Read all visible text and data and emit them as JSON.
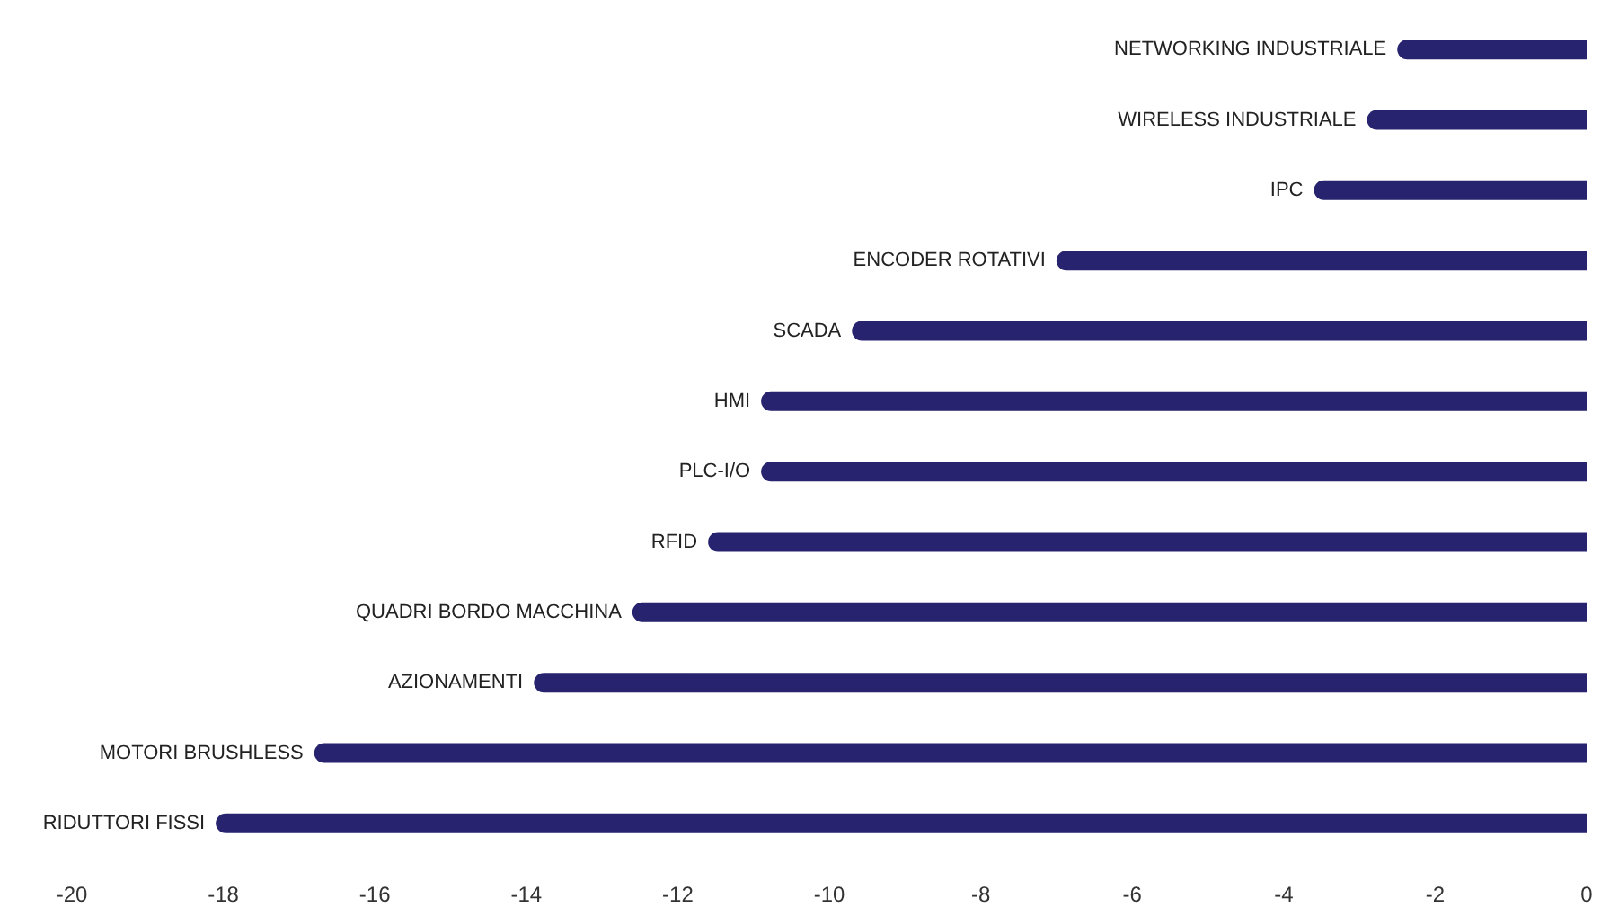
{
  "chart_data": {
    "type": "bar",
    "orientation": "horizontal",
    "categories": [
      "NETWORKING INDUSTRIALE",
      "WIRELESS INDUSTRIALE",
      "IPC",
      "ENCODER ROTATIVI",
      "SCADA",
      "HMI",
      "PLC-I/O",
      "RFID",
      "QUADRI BORDO MACCHINA",
      "AZIONAMENTI",
      "MOTORI BRUSHLESS",
      "RIDUTTORI FISSI"
    ],
    "values": [
      -2.5,
      -2.9,
      -3.6,
      -7.0,
      -9.7,
      -10.9,
      -10.9,
      -11.6,
      -12.6,
      -13.9,
      -16.8,
      -18.1
    ],
    "color": "#27236e",
    "xlim": [
      -20,
      0
    ],
    "xticks": [
      -20,
      -18,
      -16,
      -14,
      -12,
      -10,
      -8,
      -6,
      -4,
      -2,
      0
    ],
    "grid": false
  }
}
